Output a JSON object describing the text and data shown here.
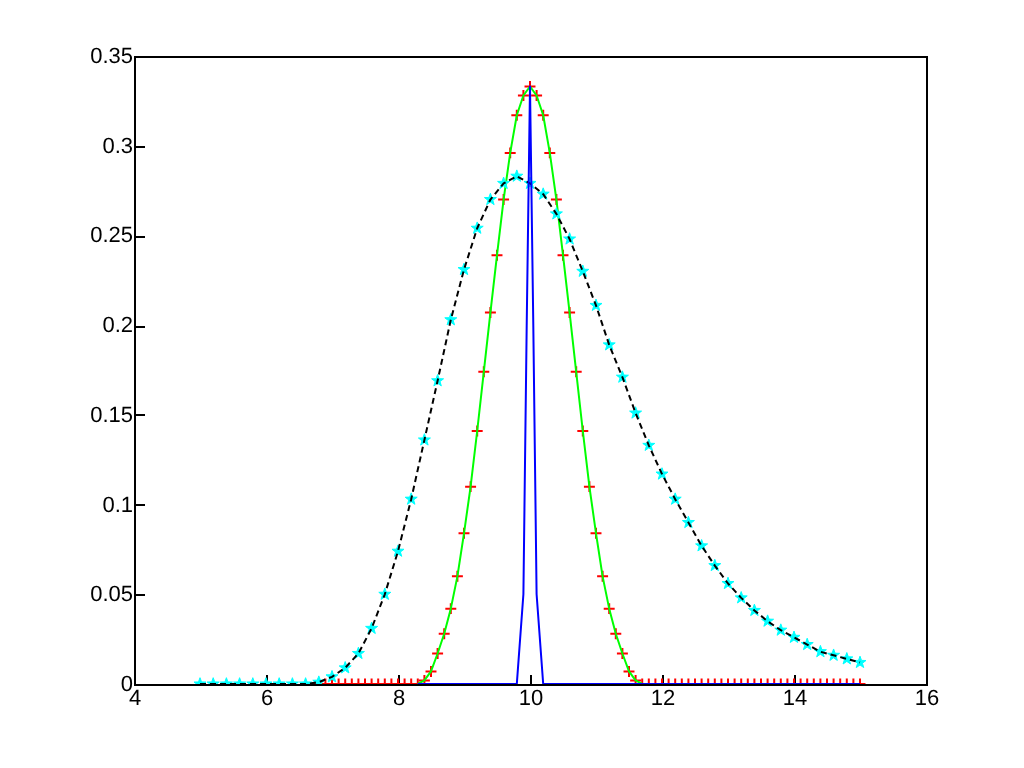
{
  "chart_data": {
    "type": "line",
    "xlim": [
      4,
      16
    ],
    "ylim": [
      0,
      0.35
    ],
    "xticks": [
      4,
      6,
      8,
      10,
      12,
      14,
      16
    ],
    "yticks": [
      0,
      0.05,
      0.1,
      0.15,
      0.2,
      0.25,
      0.3,
      0.35
    ],
    "grid": false,
    "series": [
      {
        "type": "scatter",
        "marker": "cross",
        "color": "#ff0000",
        "x": [
          6.8,
          6.9,
          7.0,
          7.1,
          7.2,
          7.3,
          7.4,
          7.5,
          7.6,
          7.7,
          7.8,
          7.9,
          8.0,
          8.1,
          8.2,
          8.3,
          8.4,
          8.5,
          8.6,
          8.7,
          8.8,
          8.9,
          9.0,
          9.1,
          9.2,
          9.3,
          9.4,
          9.5,
          9.6,
          9.7,
          9.8,
          9.9,
          10.0,
          10.1,
          10.2,
          10.3,
          10.4,
          10.5,
          10.6,
          10.7,
          10.8,
          10.9,
          11.0,
          11.1,
          11.2,
          11.3,
          11.4,
          11.5,
          11.6,
          11.7,
          11.8,
          11.9,
          12.0,
          12.1,
          12.2,
          12.3,
          12.4,
          12.5,
          12.6,
          12.7,
          12.8,
          12.9,
          13.0,
          13.1,
          13.2,
          13.3,
          13.4,
          13.5,
          13.6,
          13.7,
          13.8,
          13.9,
          14.0,
          14.1,
          14.2,
          14.3,
          14.4,
          14.5,
          14.6,
          14.7,
          14.8,
          14.9,
          15.0
        ],
        "values": [
          0,
          0,
          0,
          0,
          0,
          0,
          0,
          0,
          0,
          0,
          0,
          0,
          0,
          0,
          0,
          0,
          0.002,
          0.007,
          0.017,
          0.028,
          0.042,
          0.06,
          0.084,
          0.11,
          0.141,
          0.174,
          0.207,
          0.239,
          0.27,
          0.296,
          0.317,
          0.328,
          0.333,
          0.328,
          0.317,
          0.296,
          0.27,
          0.239,
          0.207,
          0.174,
          0.141,
          0.11,
          0.084,
          0.06,
          0.042,
          0.028,
          0.017,
          0.007,
          0.002,
          0,
          0,
          0,
          0,
          0,
          0,
          0,
          0,
          0,
          0,
          0,
          0,
          0,
          0,
          0,
          0,
          0,
          0,
          0,
          0,
          0,
          0,
          0,
          0,
          0,
          0,
          0,
          0,
          0,
          0,
          0,
          0,
          0,
          0
        ]
      },
      {
        "color": "#00ff00",
        "line_style": "solid",
        "x": [
          8.3,
          8.4,
          8.5,
          8.6,
          8.7,
          8.8,
          8.9,
          9.0,
          9.1,
          9.2,
          9.3,
          9.4,
          9.5,
          9.6,
          9.7,
          9.8,
          9.9,
          10.0,
          10.1,
          10.2,
          10.3,
          10.4,
          10.5,
          10.6,
          10.7,
          10.8,
          10.9,
          11.0,
          11.1,
          11.2,
          11.3,
          11.4,
          11.5,
          11.6,
          11.7
        ],
        "values": [
          0,
          0.002,
          0.007,
          0.017,
          0.028,
          0.042,
          0.06,
          0.084,
          0.11,
          0.141,
          0.174,
          0.207,
          0.239,
          0.27,
          0.296,
          0.317,
          0.328,
          0.333,
          0.328,
          0.317,
          0.296,
          0.27,
          0.239,
          0.207,
          0.174,
          0.141,
          0.11,
          0.084,
          0.06,
          0.042,
          0.028,
          0.017,
          0.007,
          0.002,
          0
        ]
      },
      {
        "type": "scatter",
        "marker": "star",
        "color": "#00ffff",
        "x": [
          5.0,
          5.2,
          5.4,
          5.6,
          5.8,
          6.0,
          6.2,
          6.4,
          6.6,
          6.8,
          7.0,
          7.2,
          7.4,
          7.6,
          7.8,
          8.0,
          8.2,
          8.4,
          8.6,
          8.8,
          9.0,
          9.2,
          9.4,
          9.6,
          9.8,
          10.0,
          10.2,
          10.4,
          10.6,
          10.8,
          11.0,
          11.2,
          11.4,
          11.6,
          11.8,
          12.0,
          12.2,
          12.4,
          12.6,
          12.8,
          13.0,
          13.2,
          13.4,
          13.6,
          13.8,
          14.0,
          14.2,
          14.4,
          14.6,
          14.8,
          15.0
        ],
        "values": [
          0,
          0,
          0,
          0,
          0,
          0,
          0,
          0,
          0,
          0.001,
          0.004,
          0.009,
          0.017,
          0.031,
          0.05,
          0.074,
          0.103,
          0.136,
          0.169,
          0.203,
          0.231,
          0.254,
          0.27,
          0.279,
          0.283,
          0.279,
          0.273,
          0.262,
          0.248,
          0.23,
          0.211,
          0.189,
          0.171,
          0.151,
          0.133,
          0.117,
          0.103,
          0.09,
          0.077,
          0.066,
          0.056,
          0.048,
          0.041,
          0.035,
          0.03,
          0.026,
          0.022,
          0.018,
          0.016,
          0.014,
          0.012
        ]
      },
      {
        "color": "#000000",
        "line_style": "dashed",
        "x": [
          5.0,
          5.2,
          5.4,
          5.6,
          5.8,
          6.0,
          6.2,
          6.4,
          6.6,
          6.8,
          7.0,
          7.2,
          7.4,
          7.6,
          7.8,
          8.0,
          8.2,
          8.4,
          8.6,
          8.8,
          9.0,
          9.2,
          9.4,
          9.6,
          9.8,
          10.0,
          10.2,
          10.4,
          10.6,
          10.8,
          11.0,
          11.2,
          11.4,
          11.6,
          11.8,
          12.0,
          12.2,
          12.4,
          12.6,
          12.8,
          13.0,
          13.2,
          13.4,
          13.6,
          13.8,
          14.0,
          14.2,
          14.4,
          14.6,
          14.8,
          15.0
        ],
        "values": [
          0,
          0,
          0,
          0,
          0,
          0,
          0,
          0,
          0,
          0.001,
          0.004,
          0.009,
          0.017,
          0.031,
          0.05,
          0.074,
          0.103,
          0.136,
          0.169,
          0.203,
          0.231,
          0.254,
          0.27,
          0.279,
          0.283,
          0.279,
          0.273,
          0.262,
          0.248,
          0.23,
          0.211,
          0.189,
          0.171,
          0.151,
          0.133,
          0.117,
          0.103,
          0.09,
          0.077,
          0.066,
          0.056,
          0.048,
          0.041,
          0.035,
          0.03,
          0.026,
          0.022,
          0.018,
          0.016,
          0.014,
          0.012
        ]
      },
      {
        "color": "#0000ff",
        "line_style": "solid",
        "x": [
          8.3,
          9.8,
          9.9,
          9.95,
          10.0,
          10.05,
          10.1,
          10.2,
          15.0
        ],
        "values": [
          0,
          0,
          0.05,
          0.2,
          0.333,
          0.2,
          0.05,
          0,
          0
        ]
      }
    ]
  }
}
